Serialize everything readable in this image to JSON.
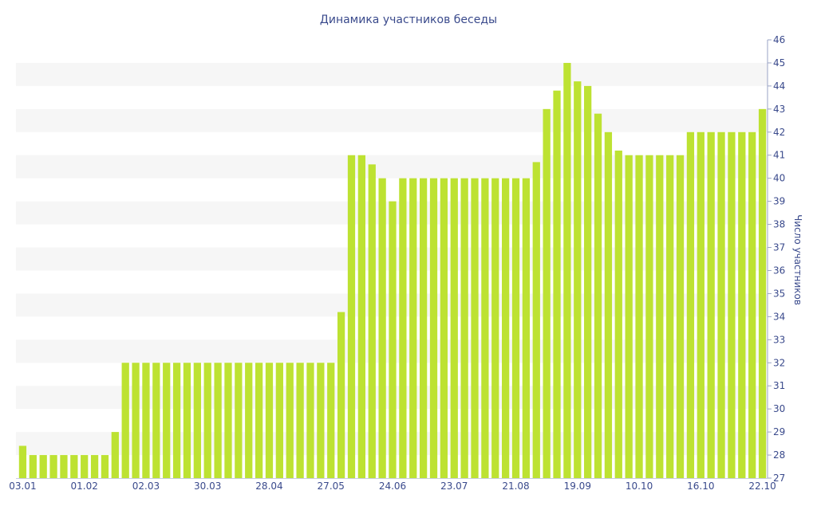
{
  "chart_data": {
    "type": "bar",
    "title": "Динамика участников беседы",
    "xlabel": "",
    "ylabel": "Число участников",
    "ylim": [
      27,
      46
    ],
    "yticks": [
      27,
      28,
      29,
      30,
      31,
      32,
      33,
      34,
      35,
      36,
      37,
      38,
      39,
      40,
      41,
      42,
      43,
      44,
      45,
      46
    ],
    "x_tick_labels": [
      {
        "index": 0,
        "label": "03.01"
      },
      {
        "index": 6,
        "label": "01.02"
      },
      {
        "index": 12,
        "label": "02.03"
      },
      {
        "index": 18,
        "label": "30.03"
      },
      {
        "index": 24,
        "label": "28.04"
      },
      {
        "index": 30,
        "label": "27.05"
      },
      {
        "index": 36,
        "label": "24.06"
      },
      {
        "index": 42,
        "label": "23.07"
      },
      {
        "index": 48,
        "label": "21.08"
      },
      {
        "index": 54,
        "label": "19.09"
      },
      {
        "index": 60,
        "label": "10.10"
      },
      {
        "index": 66,
        "label": "16.10"
      },
      {
        "index": 72,
        "label": "22.10"
      }
    ],
    "values": [
      28.4,
      28,
      28,
      28,
      28,
      28,
      28,
      28,
      28,
      29,
      32,
      32,
      32,
      32,
      32,
      32,
      32,
      32,
      32,
      32,
      32,
      32,
      32,
      32,
      32,
      32,
      32,
      32,
      32,
      32,
      32,
      34.2,
      41,
      41,
      40.6,
      40,
      39,
      40,
      40,
      40,
      40,
      40,
      40,
      40,
      40,
      40,
      40,
      40,
      40,
      40,
      40.7,
      43,
      43.8,
      45,
      44.2,
      44,
      42.8,
      42,
      41.2,
      41,
      41,
      41,
      41,
      41,
      41,
      42,
      42,
      42,
      42,
      42,
      42,
      42,
      43
    ],
    "bar_color": "#bde232",
    "band_color": "#f6f6f6",
    "text_color": "#3a4a8c",
    "grid": "alternating-bands",
    "y_axis_position": "right"
  }
}
